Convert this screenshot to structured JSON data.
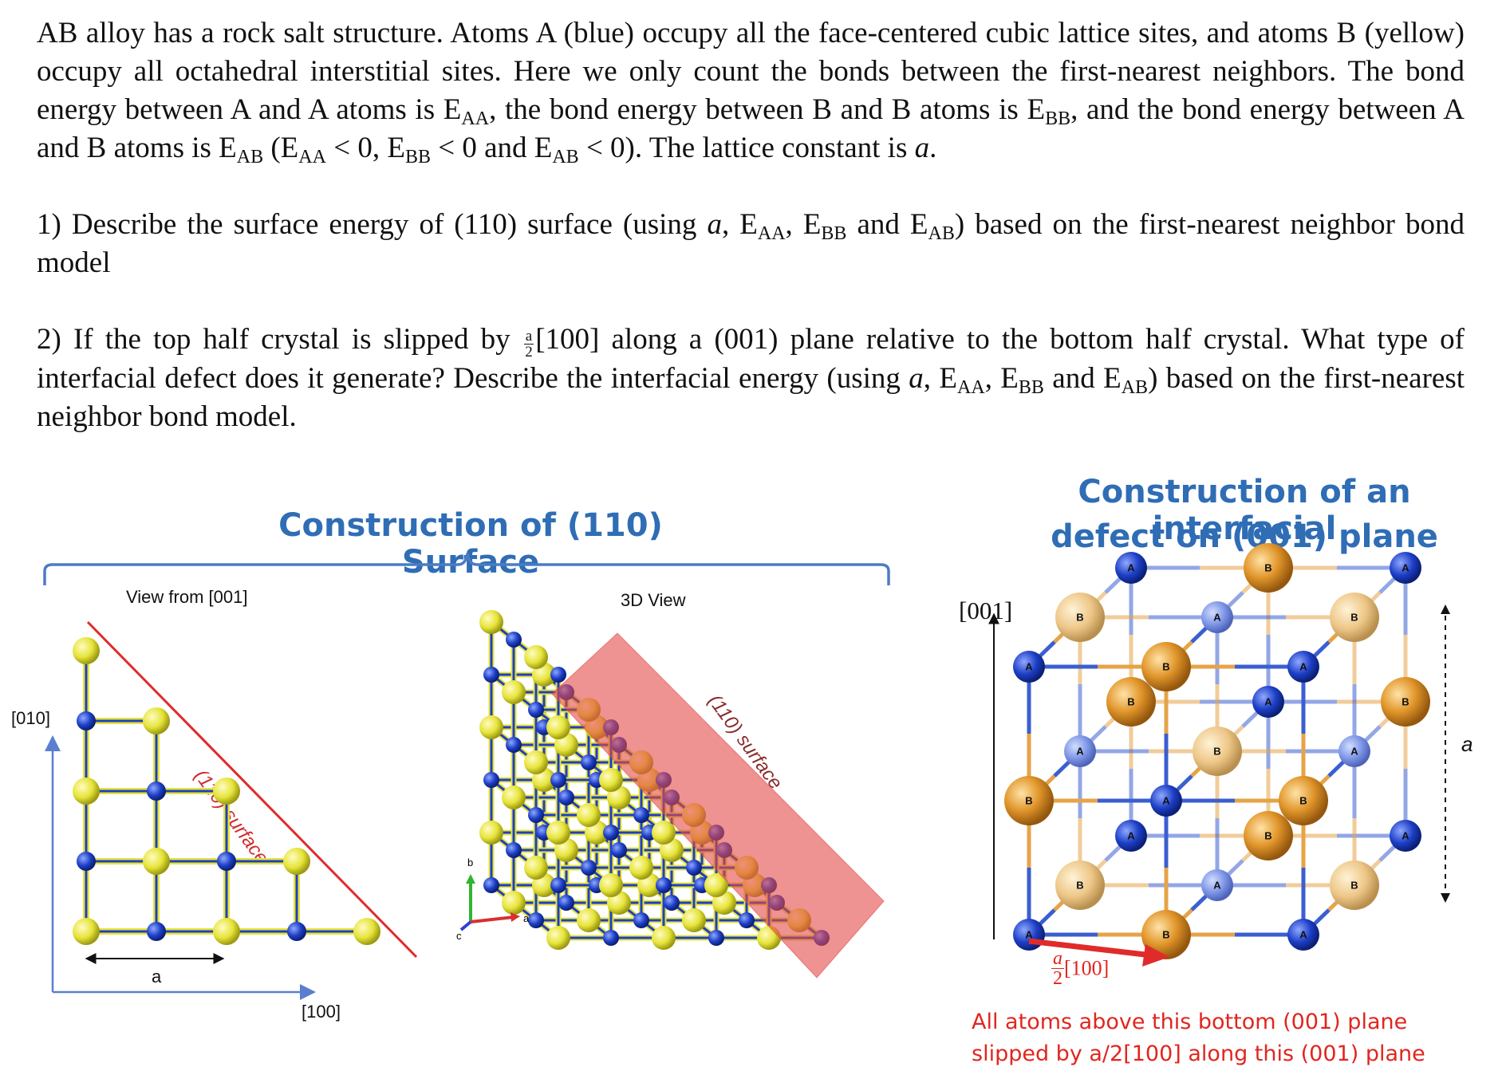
{
  "question": {
    "intro": {
      "t1": "AB alloy has a rock salt structure. Atoms A (blue) occupy all the face-centered cubic lattice sites, and atoms B (yellow) occupy all octahedral interstitial sites. Here we only count the bonds between the first-nearest neighbors. The bond energy between A and A atoms is E",
      "s_aa": "AA",
      "t2": ", the bond energy between B and B atoms is E",
      "s_bb": "BB",
      "t3": ", and the bond energy between A and B atoms is E",
      "s_ab": "AB",
      "t4": " (E",
      "t5": " < 0, E",
      "t6": " < 0 and  E",
      "t7": " < 0). The lattice constant is ",
      "a": "a",
      "t8": "."
    },
    "part1": {
      "t1": "1) Describe the surface energy of (110) surface (using ",
      "a": "a",
      "t2": ", E",
      "s_aa": "AA",
      "t3": ", E",
      "s_bb": "BB",
      "t4": " and E",
      "s_ab": "AB",
      "t5": ") based on the first-nearest neighbor bond model"
    },
    "part2": {
      "t1": "2) If the top half crystal is slipped by ",
      "frac_num": "a",
      "frac_den": "2",
      "t2": "[100] along a (001) plane relative to the bottom half crystal. What type of interfacial defect does it generate? Describe the interfacial energy (using ",
      "a": "a",
      "t3": ", E",
      "s_aa": "AA",
      "t4": ", E",
      "s_bb": "BB",
      "t5": " and E",
      "s_ab": "AB",
      "t6": ") based on the first-nearest neighbor bond model."
    }
  },
  "figure_left": {
    "title": "Construction of (110) Surface",
    "view_label": "View from [001]",
    "view3d_label": "3D View",
    "axis_y": "[010]",
    "axis_x": "[100]",
    "lattice_label": "a",
    "surface_label": "(110) surface",
    "surface_label_3d": "(110) surface",
    "triad_b": "b",
    "triad_a": "a",
    "triad_c": "c"
  },
  "figure_right": {
    "title_line1": "Construction of an interfacial",
    "title_line2": "defect on (001) plane",
    "axis_z": "[001]",
    "lattice_label": "a",
    "slip_num": "a",
    "slip_den": "2",
    "slip_dir": "[100]",
    "note_line1": "All atoms above this bottom (001) plane",
    "note_line2": "slipped by a/2[100] along this (001) plane",
    "atom_a": "A",
    "atom_b": "B"
  },
  "colors": {
    "title_blue": "#2f6db5",
    "atom_a": "#1d3fc6",
    "atom_b_2d": "#e6e43a",
    "atom_b_3d": "#e1962b",
    "surface_red": "#e03030",
    "note_red": "#e0261e"
  }
}
